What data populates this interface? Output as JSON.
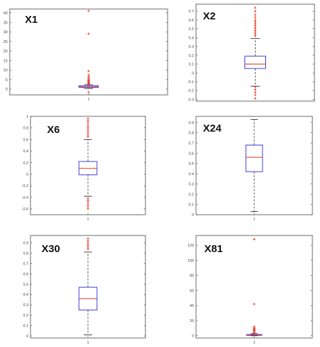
{
  "chart_data": [
    {
      "type": "boxplot",
      "title": "X1",
      "ylim": [
        -3,
        42
      ],
      "yticks": [
        0,
        5,
        10,
        15,
        20,
        25,
        30,
        35,
        40
      ],
      "xticks": [
        "1"
      ],
      "box": {
        "min": 0.3,
        "q1": 0.9,
        "median": 1.3,
        "q3": 1.8,
        "max": 2.4
      },
      "outliers": [
        41,
        29,
        2.7,
        3.0,
        3.3,
        3.6,
        4.0,
        4.4,
        4.8,
        5.3,
        5.8,
        6.5,
        7.5,
        9.5,
        -1.5
      ]
    },
    {
      "type": "boxplot",
      "title": "X2",
      "ylim": [
        -0.32,
        0.78
      ],
      "yticks": [
        -0.3,
        -0.2,
        -0.1,
        0,
        0.1,
        0.2,
        0.3,
        0.4,
        0.5,
        0.6,
        0.7
      ],
      "box": {
        "min": -0.15,
        "q1": 0.05,
        "median": 0.1,
        "q3": 0.19,
        "max": 0.39
      },
      "outliers": [
        0.74,
        0.7,
        0.66,
        0.63,
        0.6,
        0.58,
        0.56,
        0.54,
        0.52,
        0.5,
        0.48,
        0.46,
        0.44,
        0.42,
        -0.16,
        -0.19,
        -0.22,
        -0.25,
        -0.29
      ]
    },
    {
      "type": "boxplot",
      "title": "X6",
      "ylim": [
        -0.7,
        1.0
      ],
      "yticks": [
        -0.6,
        -0.4,
        -0.2,
        0,
        0.2,
        0.4,
        0.6,
        0.8,
        1
      ],
      "xticks": [
        "1"
      ],
      "box": {
        "min": -0.38,
        "q1": -0.01,
        "median": 0.1,
        "q3": 0.22,
        "max": 0.6
      },
      "outliers": [
        0.96,
        0.92,
        0.88,
        0.84,
        0.8,
        0.76,
        0.72,
        0.68,
        0.65,
        -0.42,
        -0.45,
        -0.48,
        -0.52,
        -0.56,
        -0.6
      ]
    },
    {
      "type": "boxplot",
      "title": "X24",
      "ylim": [
        0,
        0.96
      ],
      "yticks": [
        0,
        0.1,
        0.2,
        0.3,
        0.4,
        0.5,
        0.6,
        0.7,
        0.8,
        0.9
      ],
      "xticks": [
        "1"
      ],
      "box": {
        "min": 0.03,
        "q1": 0.42,
        "median": 0.56,
        "q3": 0.68,
        "max": 0.93
      },
      "outliers": []
    },
    {
      "type": "boxplot",
      "title": "X30",
      "ylim": [
        -0.02,
        0.97
      ],
      "yticks": [
        0,
        0.1,
        0.2,
        0.3,
        0.4,
        0.5,
        0.6,
        0.7,
        0.8,
        0.9
      ],
      "xticks": [
        "1"
      ],
      "box": {
        "min": 0.01,
        "q1": 0.25,
        "median": 0.36,
        "q3": 0.47,
        "max": 0.81
      },
      "outliers": [
        0.94,
        0.92,
        0.9,
        0.88,
        0.86,
        0.84
      ]
    },
    {
      "type": "boxplot",
      "title": "X81",
      "ylim": [
        -3,
        133
      ],
      "yticks": [
        0,
        20,
        40,
        60,
        80,
        100,
        120
      ],
      "xticks": [
        "1"
      ],
      "box": {
        "min": 0,
        "q1": 0.6,
        "median": 1.1,
        "q3": 1.6,
        "max": 2.8
      },
      "outliers": [
        128,
        42,
        3.5,
        4.5,
        5.5,
        6.5,
        7.5,
        8.5,
        9.5,
        10.5,
        12
      ]
    }
  ],
  "colors": {
    "box": "#3b3bd9",
    "median": "#e0301e",
    "outlier": "#e0301e",
    "whisker": "#333333",
    "frame": "#444444"
  }
}
